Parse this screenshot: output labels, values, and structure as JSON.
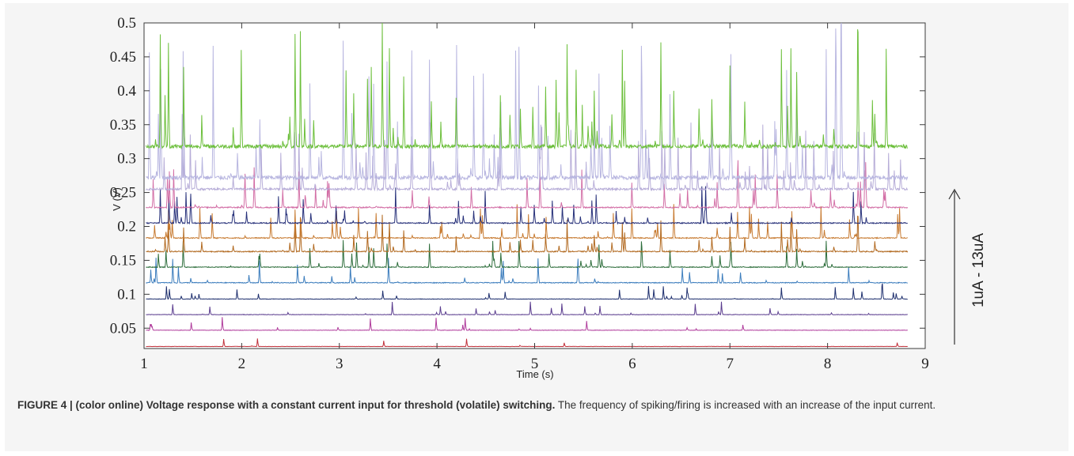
{
  "caption": {
    "bold": "FIGURE 4 | (color online) Voltage response with a constant current input for threshold (volatile) switching.",
    "rest": " The frequency of spiking/firing is increased with an increase of the input current."
  },
  "side_annotation": {
    "label": "1uA - 13uA",
    "arrow": "up"
  },
  "chart_data": {
    "type": "line",
    "title": "",
    "xlabel": "Time (s)",
    "ylabel": "V (V)",
    "xlim": [
      1,
      9
    ],
    "ylim": [
      0.02,
      0.5
    ],
    "xticks": [
      1,
      2,
      3,
      4,
      5,
      6,
      7,
      8,
      9
    ],
    "yticks": [
      0.05,
      0.1,
      0.15,
      0.2,
      0.25,
      0.3,
      0.35,
      0.4,
      0.45,
      0.5
    ],
    "ytick_labels": [
      "0.05",
      "0.1",
      "0.15",
      "0.2",
      "0.25",
      "0.3",
      "0.35",
      "0.4",
      "0.45",
      "0.5"
    ],
    "grid": false,
    "trace_x_range": [
      1.02,
      8.82
    ],
    "series": [
      {
        "color": "#c0313b",
        "baseline": 0.023,
        "max_peak": 0.012,
        "spike_rate": 10
      },
      {
        "color": "#b03c9c",
        "baseline": 0.047,
        "max_peak": 0.02,
        "spike_rate": 24
      },
      {
        "color": "#5a3c8e",
        "baseline": 0.07,
        "max_peak": 0.02,
        "spike_rate": 30
      },
      {
        "color": "#1e2f6e",
        "baseline": 0.093,
        "max_peak": 0.022,
        "spike_rate": 38
      },
      {
        "color": "#3c7dbd",
        "baseline": 0.117,
        "max_peak": 0.038,
        "spike_rate": 44
      },
      {
        "color": "#2e6e3c",
        "baseline": 0.14,
        "max_peak": 0.04,
        "spike_rate": 50
      },
      {
        "color": "#b26a21",
        "baseline": 0.163,
        "max_peak": 0.055,
        "spike_rate": 62
      },
      {
        "color": "#c77a30",
        "baseline": 0.183,
        "max_peak": 0.05,
        "spike_rate": 66
      },
      {
        "color": "#27317a",
        "baseline": 0.205,
        "max_peak": 0.055,
        "spike_rate": 58
      },
      {
        "color": "#d36fa6",
        "baseline": 0.228,
        "max_peak": 0.06,
        "spike_rate": 70
      },
      {
        "color": "#b7add8",
        "baseline": 0.255,
        "max_peak": 0.1,
        "spike_rate": 80
      },
      {
        "color": "#b8b6e0",
        "baseline": 0.272,
        "max_peak": 0.2,
        "spike_rate": 84
      },
      {
        "color": "#6cbf3b",
        "baseline": 0.318,
        "max_peak": 0.182,
        "spike_rate": 90
      }
    ]
  }
}
